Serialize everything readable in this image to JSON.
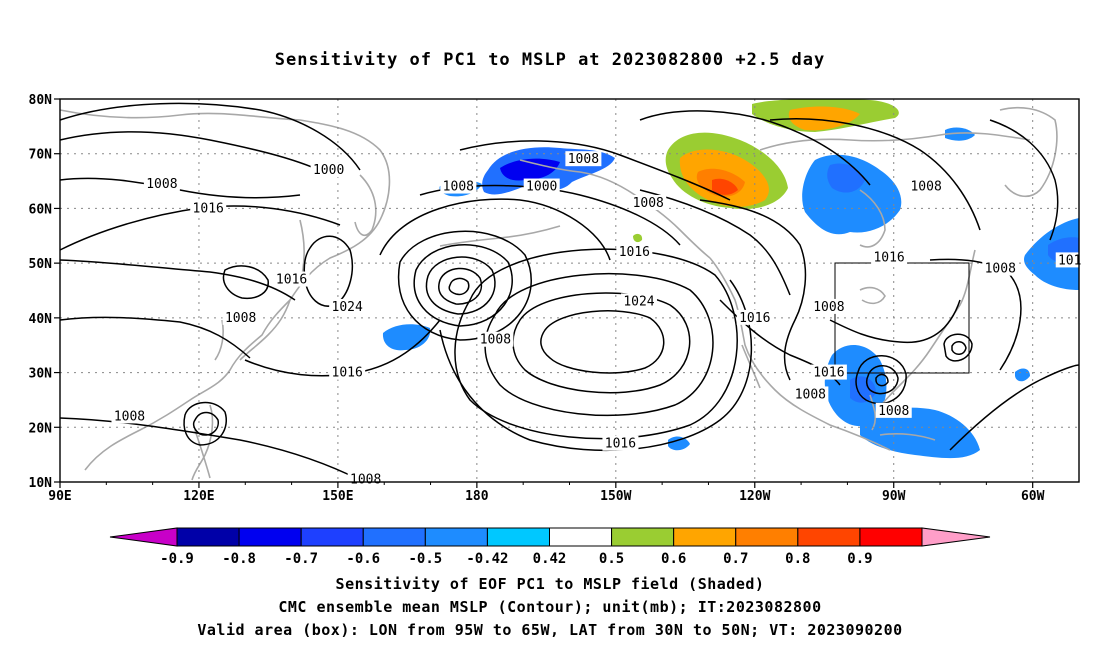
{
  "title": "Sensitivity of PC1 to MSLP at 2023082800 +2.5 day",
  "map": {
    "lat_ticks": [
      "80N",
      "70N",
      "60N",
      "50N",
      "40N",
      "30N",
      "20N",
      "10N"
    ],
    "lon_ticks": [
      "90E",
      "120E",
      "150E",
      "180",
      "150W",
      "120W",
      "90W",
      "60W"
    ],
    "grid_lines": "dotted",
    "contour_color": "#000000",
    "coastline_color": "#a8a8a8",
    "valid_box": {
      "lon_from": "95W",
      "lon_to": "65W",
      "lat_from": "30N",
      "lat_to": "50N"
    },
    "contour_labels": [
      {
        "text": "1000",
        "lon": 148,
        "lat": 67
      },
      {
        "text": "1008",
        "lon": 112,
        "lat": 64.5
      },
      {
        "text": "1016",
        "lon": 122,
        "lat": 60
      },
      {
        "text": "1008",
        "lon": 176,
        "lat": 64
      },
      {
        "text": "1008",
        "lon": -157,
        "lat": 69
      },
      {
        "text": "1000",
        "lon": -166,
        "lat": 64
      },
      {
        "text": "1008",
        "lon": -143,
        "lat": 61
      },
      {
        "text": "1008",
        "lon": -83,
        "lat": 64
      },
      {
        "text": "1016",
        "lon": -91,
        "lat": 51
      },
      {
        "text": "1008",
        "lon": -67,
        "lat": 49
      },
      {
        "text": "1016",
        "lon": -146,
        "lat": 52
      },
      {
        "text": "1024",
        "lon": -145,
        "lat": 43
      },
      {
        "text": "1016",
        "lon": 140,
        "lat": 47
      },
      {
        "text": "1024",
        "lon": 152,
        "lat": 42
      },
      {
        "text": "1008",
        "lon": 129,
        "lat": 40
      },
      {
        "text": "1008",
        "lon": -176,
        "lat": 36
      },
      {
        "text": "1016",
        "lon": -120,
        "lat": 40
      },
      {
        "text": "1008",
        "lon": -104,
        "lat": 42
      },
      {
        "text": "1016",
        "lon": -104,
        "lat": 30
      },
      {
        "text": "1008",
        "lon": -108,
        "lat": 26
      },
      {
        "text": "1008",
        "lon": -90,
        "lat": 23
      },
      {
        "text": "1016",
        "lon": 152,
        "lat": 30
      },
      {
        "text": "1008",
        "lon": 105,
        "lat": 22
      },
      {
        "text": "1016",
        "lon": -149,
        "lat": 17
      },
      {
        "text": "1008",
        "lon": 156,
        "lat": 10.5
      },
      {
        "text": "101",
        "lon": -52,
        "lat": 50.5
      }
    ]
  },
  "colorbar": {
    "tick_labels": [
      "-0.9",
      "-0.8",
      "-0.7",
      "-0.6",
      "-0.5",
      "-0.42",
      "0.42",
      "0.5",
      "0.6",
      "0.7",
      "0.8",
      "0.9"
    ],
    "colors": [
      "#c800c8",
      "#0000a8",
      "#0000f0",
      "#1e40ff",
      "#2070ff",
      "#1e8cff",
      "#00c8ff",
      "#ffffff",
      "#9acd32",
      "#ffa500",
      "#ff7f00",
      "#ff4500",
      "#ff0000",
      "#ff9ec8"
    ]
  },
  "footer": {
    "line1": "Sensitivity of EOF PC1 to MSLP field (Shaded)",
    "line2": "CMC ensemble mean MSLP (Contour); unit(mb); IT:2023082800",
    "line3": "Valid area (box): LON from 95W to 65W, LAT from 30N to 50N; VT: 2023090200"
  }
}
